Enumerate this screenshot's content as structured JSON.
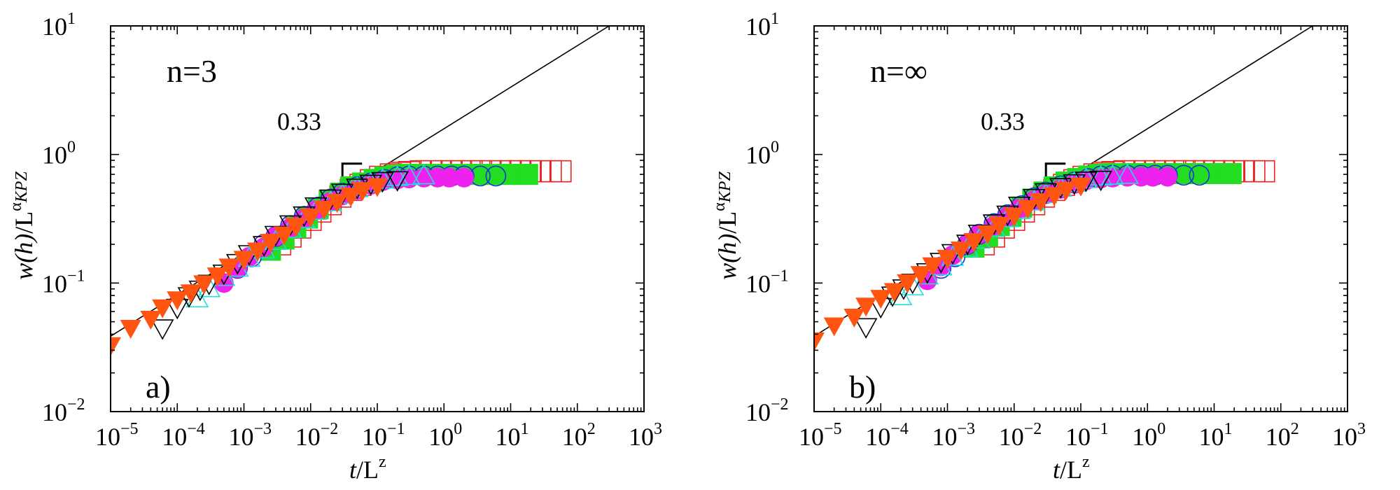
{
  "figure": {
    "xlabel_var": "t",
    "xlabel_den": "/L",
    "xlabel_exp": "z",
    "ylabel_var": "w(h)",
    "ylabel_den": "/L",
    "ylabel_exp": "α",
    "ylabel_sub": "KPZ",
    "x_ticks": [
      {
        "base": "10",
        "exp": "−5"
      },
      {
        "base": "10",
        "exp": "−4"
      },
      {
        "base": "10",
        "exp": "−3"
      },
      {
        "base": "10",
        "exp": "−2"
      },
      {
        "base": "10",
        "exp": "−1"
      },
      {
        "base": "10",
        "exp": "0"
      },
      {
        "base": "10",
        "exp": "1"
      },
      {
        "base": "10",
        "exp": "2"
      },
      {
        "base": "10",
        "exp": "3"
      }
    ],
    "y_ticks": [
      {
        "base": "10",
        "exp": "−2"
      },
      {
        "base": "10",
        "exp": "−1"
      },
      {
        "base": "10",
        "exp": "0"
      },
      {
        "base": "10",
        "exp": "1"
      }
    ]
  },
  "chart_data": [
    {
      "type": "scatter",
      "panel": "a)",
      "annotation": "n=3",
      "xscale": "log",
      "yscale": "log",
      "xlim": [
        1e-05,
        1000
      ],
      "ylim": [
        0.01,
        10
      ],
      "fit_line": {
        "slope": 0.33,
        "label": "0.33",
        "x": [
          6e-06,
          300
        ],
        "y": [
          0.0327,
          10
        ]
      },
      "series": [
        {
          "name": "red open squares",
          "marker": "square",
          "filled": false,
          "color": "#ee2222",
          "x": [
            0.0035,
            0.005,
            0.007,
            0.01,
            0.014,
            0.02,
            0.028,
            0.04,
            0.056,
            0.08,
            0.11,
            0.16,
            0.22,
            0.3,
            0.45,
            0.65,
            0.9,
            1.3,
            1.8,
            2.6,
            3.6,
            5,
            7,
            10,
            14,
            20,
            28,
            40,
            56
          ],
          "y": [
            0.2,
            0.23,
            0.27,
            0.31,
            0.36,
            0.41,
            0.47,
            0.53,
            0.58,
            0.63,
            0.67,
            0.7,
            0.72,
            0.73,
            0.74,
            0.74,
            0.74,
            0.74,
            0.74,
            0.74,
            0.74,
            0.74,
            0.74,
            0.74,
            0.74,
            0.74,
            0.74,
            0.74,
            0.74
          ]
        },
        {
          "name": "green filled squares",
          "marker": "square",
          "filled": true,
          "color": "#22dd22",
          "x": [
            0.0025,
            0.004,
            0.006,
            0.009,
            0.013,
            0.019,
            0.028,
            0.04,
            0.06,
            0.09,
            0.13,
            0.19,
            0.28,
            0.4,
            0.6,
            0.9,
            1.3,
            1.9,
            2.8,
            4,
            6,
            9,
            13,
            18
          ],
          "y": [
            0.18,
            0.22,
            0.27,
            0.32,
            0.38,
            0.44,
            0.5,
            0.56,
            0.6,
            0.64,
            0.67,
            0.69,
            0.7,
            0.7,
            0.7,
            0.7,
            0.7,
            0.7,
            0.7,
            0.7,
            0.7,
            0.7,
            0.7,
            0.7
          ]
        },
        {
          "name": "blue open circles",
          "marker": "circle",
          "filled": false,
          "color": "#1133dd",
          "x": [
            0.0008,
            0.0013,
            0.002,
            0.003,
            0.005,
            0.008,
            0.013,
            0.02,
            0.03,
            0.05,
            0.08,
            0.13,
            0.2,
            0.3,
            0.5,
            0.8,
            1.3,
            2,
            3.5,
            6
          ],
          "y": [
            0.13,
            0.16,
            0.2,
            0.23,
            0.28,
            0.33,
            0.39,
            0.45,
            0.5,
            0.56,
            0.6,
            0.64,
            0.67,
            0.68,
            0.68,
            0.68,
            0.68,
            0.68,
            0.68,
            0.68
          ]
        },
        {
          "name": "magenta filled circles",
          "marker": "circle",
          "filled": true,
          "color": "#ee22ee",
          "x": [
            0.0005,
            0.0008,
            0.0012,
            0.002,
            0.003,
            0.005,
            0.008,
            0.012,
            0.02,
            0.03,
            0.05,
            0.08,
            0.12,
            0.2,
            0.3,
            0.5,
            0.8,
            1.2,
            2
          ],
          "y": [
            0.1,
            0.13,
            0.16,
            0.19,
            0.23,
            0.27,
            0.32,
            0.37,
            0.43,
            0.48,
            0.53,
            0.58,
            0.62,
            0.64,
            0.65,
            0.66,
            0.66,
            0.66,
            0.66
          ]
        },
        {
          "name": "cyan open triangles",
          "marker": "triangle-up",
          "filled": false,
          "color": "#22dddd",
          "x": [
            0.0002,
            0.0003,
            0.0005,
            0.0008,
            0.0012,
            0.002,
            0.003,
            0.005,
            0.008,
            0.012,
            0.02,
            0.03,
            0.05,
            0.08,
            0.12,
            0.2,
            0.3,
            0.5
          ],
          "y": [
            0.075,
            0.09,
            0.11,
            0.13,
            0.155,
            0.18,
            0.21,
            0.26,
            0.31,
            0.36,
            0.42,
            0.48,
            0.54,
            0.59,
            0.63,
            0.66,
            0.67,
            0.68
          ]
        },
        {
          "name": "black open inverted triangles",
          "marker": "triangle-down",
          "filled": false,
          "color": "#000000",
          "x": [
            6e-05,
            0.0001,
            0.00015,
            0.00022,
            0.0003,
            0.0005,
            0.0008,
            0.0012,
            0.002,
            0.003,
            0.005,
            0.008,
            0.012,
            0.02,
            0.03,
            0.05,
            0.08,
            0.12,
            0.2
          ],
          "y": [
            0.045,
            0.065,
            0.08,
            0.09,
            0.1,
            0.12,
            0.145,
            0.17,
            0.2,
            0.24,
            0.29,
            0.34,
            0.4,
            0.46,
            0.51,
            0.56,
            0.6,
            0.63,
            0.64
          ]
        },
        {
          "name": "orange filled inverted triangles",
          "marker": "triangle-down",
          "filled": true,
          "color": "#ff5511",
          "x": [
            1e-05,
            2e-05,
            4e-05,
            6e-05,
            0.0001,
            0.00016,
            0.00025,
            0.0004,
            0.0006,
            0.001,
            0.0016,
            0.0025,
            0.004,
            0.006,
            0.01,
            0.016,
            0.025,
            0.04,
            0.06,
            0.1
          ],
          "y": [
            0.033,
            0.045,
            0.053,
            0.065,
            0.075,
            0.085,
            0.1,
            0.115,
            0.135,
            0.155,
            0.18,
            0.21,
            0.24,
            0.28,
            0.33,
            0.38,
            0.43,
            0.48,
            0.53,
            0.57
          ]
        }
      ]
    },
    {
      "type": "scatter",
      "panel": "b)",
      "annotation": "n=∞",
      "xscale": "log",
      "yscale": "log",
      "xlim": [
        1e-05,
        1000
      ],
      "ylim": [
        0.01,
        10
      ],
      "fit_line": {
        "slope": 0.33,
        "label": "0.33",
        "x": [
          6e-06,
          300
        ],
        "y": [
          0.0327,
          10
        ]
      },
      "series": [
        {
          "name": "red open squares",
          "marker": "square",
          "filled": false,
          "color": "#ee2222",
          "x": [
            0.0035,
            0.005,
            0.007,
            0.01,
            0.014,
            0.02,
            0.028,
            0.04,
            0.056,
            0.08,
            0.11,
            0.16,
            0.22,
            0.3,
            0.45,
            0.65,
            0.9,
            1.3,
            1.8,
            2.6,
            3.6,
            5,
            7,
            10,
            14,
            20,
            28,
            40,
            56
          ],
          "y": [
            0.2,
            0.23,
            0.27,
            0.31,
            0.36,
            0.41,
            0.47,
            0.53,
            0.58,
            0.63,
            0.67,
            0.7,
            0.72,
            0.73,
            0.74,
            0.74,
            0.74,
            0.74,
            0.74,
            0.74,
            0.74,
            0.74,
            0.74,
            0.74,
            0.74,
            0.74,
            0.74,
            0.74,
            0.74
          ]
        },
        {
          "name": "green filled squares",
          "marker": "square",
          "filled": true,
          "color": "#22dd22",
          "x": [
            0.0025,
            0.004,
            0.006,
            0.009,
            0.013,
            0.019,
            0.028,
            0.04,
            0.06,
            0.09,
            0.13,
            0.19,
            0.28,
            0.4,
            0.6,
            0.9,
            1.3,
            1.9,
            2.8,
            4,
            6,
            9,
            13,
            18
          ],
          "y": [
            0.19,
            0.23,
            0.28,
            0.33,
            0.39,
            0.45,
            0.51,
            0.56,
            0.61,
            0.65,
            0.68,
            0.7,
            0.71,
            0.71,
            0.71,
            0.71,
            0.71,
            0.71,
            0.71,
            0.71,
            0.71,
            0.71,
            0.71,
            0.71
          ]
        },
        {
          "name": "blue open circles",
          "marker": "circle",
          "filled": false,
          "color": "#1133dd",
          "x": [
            0.0008,
            0.0013,
            0.002,
            0.003,
            0.005,
            0.008,
            0.013,
            0.02,
            0.03,
            0.05,
            0.08,
            0.13,
            0.2,
            0.3,
            0.5,
            0.8,
            1.3,
            2,
            3.5,
            6
          ],
          "y": [
            0.13,
            0.16,
            0.2,
            0.24,
            0.29,
            0.34,
            0.4,
            0.46,
            0.51,
            0.57,
            0.61,
            0.65,
            0.68,
            0.69,
            0.69,
            0.69,
            0.69,
            0.69,
            0.69,
            0.69
          ]
        },
        {
          "name": "magenta filled circles",
          "marker": "circle",
          "filled": true,
          "color": "#ee22ee",
          "x": [
            0.0005,
            0.0008,
            0.0012,
            0.002,
            0.003,
            0.005,
            0.008,
            0.012,
            0.02,
            0.03,
            0.05,
            0.08,
            0.12,
            0.2,
            0.3,
            0.5,
            0.8,
            1.2,
            2
          ],
          "y": [
            0.105,
            0.135,
            0.165,
            0.2,
            0.24,
            0.28,
            0.33,
            0.38,
            0.44,
            0.49,
            0.54,
            0.59,
            0.63,
            0.65,
            0.66,
            0.67,
            0.67,
            0.67,
            0.67
          ]
        },
        {
          "name": "cyan open triangles",
          "marker": "triangle-up",
          "filled": false,
          "color": "#22dddd",
          "x": [
            0.0002,
            0.0003,
            0.0005,
            0.0008,
            0.0012,
            0.002,
            0.003,
            0.005,
            0.008,
            0.012,
            0.02,
            0.03,
            0.05,
            0.08,
            0.12,
            0.2,
            0.3,
            0.5
          ],
          "y": [
            0.078,
            0.093,
            0.113,
            0.133,
            0.158,
            0.185,
            0.215,
            0.265,
            0.315,
            0.365,
            0.425,
            0.485,
            0.545,
            0.595,
            0.635,
            0.665,
            0.675,
            0.685
          ]
        },
        {
          "name": "black open inverted triangles",
          "marker": "triangle-down",
          "filled": false,
          "color": "#000000",
          "x": [
            6e-05,
            0.0001,
            0.00015,
            0.00022,
            0.0003,
            0.0005,
            0.0008,
            0.0012,
            0.002,
            0.003,
            0.005,
            0.008,
            0.012,
            0.02,
            0.03,
            0.05,
            0.08,
            0.12,
            0.2
          ],
          "y": [
            0.046,
            0.066,
            0.081,
            0.092,
            0.102,
            0.123,
            0.148,
            0.173,
            0.205,
            0.245,
            0.295,
            0.345,
            0.405,
            0.465,
            0.515,
            0.565,
            0.605,
            0.635,
            0.645
          ]
        },
        {
          "name": "orange filled inverted triangles",
          "marker": "triangle-down",
          "filled": true,
          "color": "#ff5511",
          "x": [
            1e-05,
            2e-05,
            4e-05,
            6e-05,
            0.0001,
            0.00016,
            0.00025,
            0.0004,
            0.0006,
            0.001,
            0.0016,
            0.0025,
            0.004,
            0.006,
            0.01,
            0.016,
            0.025,
            0.04,
            0.06,
            0.1
          ],
          "y": [
            0.036,
            0.047,
            0.055,
            0.067,
            0.077,
            0.087,
            0.102,
            0.118,
            0.138,
            0.158,
            0.183,
            0.213,
            0.245,
            0.285,
            0.335,
            0.385,
            0.435,
            0.485,
            0.535,
            0.575
          ]
        }
      ]
    }
  ]
}
